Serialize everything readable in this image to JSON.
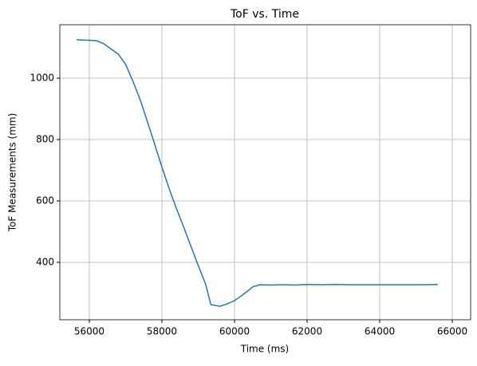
{
  "chart_data": {
    "type": "line",
    "title": "ToF vs. Time",
    "x_label": "Time (ms)",
    "y_label": "ToF Measurements (mm)",
    "x": [
      55650,
      56200,
      56400,
      56800,
      57000,
      57200,
      57400,
      57600,
      57800,
      58000,
      58200,
      58400,
      58600,
      58800,
      59000,
      59200,
      59350,
      59600,
      59800,
      60000,
      60200,
      60400,
      60500,
      60700,
      61000,
      61200,
      61400,
      61700,
      62000,
      62400,
      62800,
      63200,
      63600,
      64000,
      64400,
      64800,
      65200,
      65600
    ],
    "series": [
      {
        "name": "ToF",
        "color": "#1f77b4",
        "values": [
          1125,
          1122,
          1112,
          1078,
          1045,
          990,
          930,
          858,
          785,
          710,
          640,
          575,
          515,
          452,
          390,
          330,
          262,
          257,
          265,
          275,
          292,
          310,
          320,
          327,
          326,
          327,
          327,
          326,
          328,
          327,
          328,
          327,
          327,
          327,
          327,
          327,
          327,
          328
        ]
      }
    ],
    "xlim": [
      55187,
      66505
    ],
    "ylim": [
      213,
      1174
    ],
    "xticks": [
      56000,
      58000,
      60000,
      62000,
      64000,
      66000
    ],
    "yticks": [
      400,
      600,
      800,
      1000
    ],
    "grid": true
  }
}
